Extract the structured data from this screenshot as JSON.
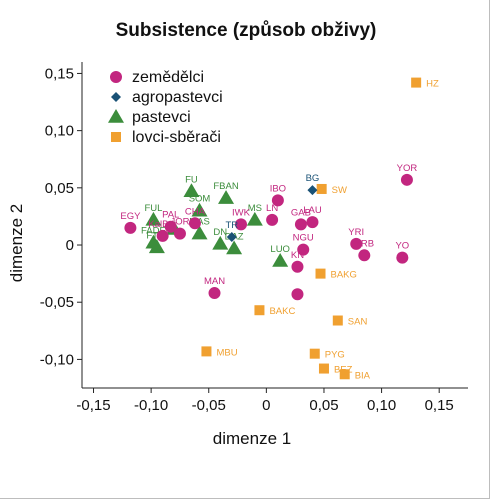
{
  "chart_data": {
    "type": "scatter",
    "title": "Subsistence (způsob obživy)",
    "xlabel": "dimenze 1",
    "ylabel": "dimenze 2",
    "xlim": [
      -0.16,
      0.175
    ],
    "ylim": [
      -0.125,
      0.16
    ],
    "xticks": [
      "-0,15",
      "-0,10",
      "-0,05",
      "0",
      "0,05",
      "0,10",
      "0,15"
    ],
    "xtick_values": [
      -0.15,
      -0.1,
      -0.05,
      0,
      0.05,
      0.1,
      0.15
    ],
    "yticks": [
      "0,15",
      "0,10",
      "0,05",
      "0",
      "-0,05",
      "-0,10"
    ],
    "ytick_values": [
      0.15,
      0.1,
      0.05,
      0,
      -0.05,
      -0.1
    ],
    "grid": false,
    "legend_position": "top-left",
    "series": [
      {
        "name": "zemědělci",
        "marker": "circle",
        "color": "#c2267f",
        "points": [
          {
            "label": "EGY",
            "x": -0.118,
            "y": 0.015
          },
          {
            "label": "KalBdr",
            "x": -0.09,
            "y": 0.008
          },
          {
            "label": "PAL",
            "x": -0.083,
            "y": 0.016
          },
          {
            "label": "JOR",
            "x": -0.075,
            "y": 0.01
          },
          {
            "label": "CHA",
            "x": -0.062,
            "y": 0.019
          },
          {
            "label": "IWK",
            "x": -0.022,
            "y": 0.018
          },
          {
            "label": "IBO",
            "x": 0.01,
            "y": 0.039
          },
          {
            "label": "LN",
            "x": 0.005,
            "y": 0.022
          },
          {
            "label": "GAB",
            "x": 0.03,
            "y": 0.018
          },
          {
            "label": "LAU",
            "x": 0.04,
            "y": 0.02
          },
          {
            "label": "YOR",
            "x": 0.122,
            "y": 0.057
          },
          {
            "label": "YRI",
            "x": 0.078,
            "y": 0.001
          },
          {
            "label": "YRB",
            "x": 0.085,
            "y": -0.009
          },
          {
            "label": "YO",
            "x": 0.118,
            "y": -0.011
          },
          {
            "label": "NGU",
            "x": 0.032,
            "y": -0.004
          },
          {
            "label": "KN",
            "x": 0.027,
            "y": -0.019
          },
          {
            "label": "MAN",
            "x": -0.045,
            "y": -0.042
          },
          {
            "label": "",
            "x": 0.027,
            "y": -0.043
          }
        ]
      },
      {
        "name": "agropastevci",
        "marker": "diamond",
        "color": "#1a5276",
        "points": [
          {
            "label": "BG",
            "x": 0.04,
            "y": 0.048
          },
          {
            "label": "TR",
            "x": -0.03,
            "y": 0.007
          }
        ]
      },
      {
        "name": "pastevci",
        "marker": "triangle",
        "color": "#3c8d3c",
        "points": [
          {
            "label": "FU",
            "x": -0.065,
            "y": 0.047
          },
          {
            "label": "FBAN",
            "x": -0.035,
            "y": 0.041
          },
          {
            "label": "SOM",
            "x": -0.058,
            "y": 0.03
          },
          {
            "label": "MS",
            "x": -0.01,
            "y": 0.022
          },
          {
            "label": "DN",
            "x": -0.04,
            "y": 0.001
          },
          {
            "label": "DAZ",
            "x": -0.028,
            "y": -0.003
          },
          {
            "label": "MAS",
            "x": -0.058,
            "y": 0.01
          },
          {
            "label": "FUL",
            "x": -0.098,
            "y": 0.022
          },
          {
            "label": "FADE",
            "x": -0.098,
            "y": 0.002
          },
          {
            "label": "FTIN",
            "x": -0.095,
            "y": -0.002
          },
          {
            "label": "LUO",
            "x": 0.012,
            "y": -0.014
          },
          {
            "label": "",
            "x": -0.08,
            "y": 0.014
          }
        ]
      },
      {
        "name": "lovci-sběrači",
        "marker": "square",
        "color": "#f0a030",
        "points": [
          {
            "label": "HZ",
            "x": 0.13,
            "y": 0.142
          },
          {
            "label": "SW",
            "x": 0.048,
            "y": 0.049
          },
          {
            "label": "BAKG",
            "x": 0.047,
            "y": -0.025
          },
          {
            "label": "BAKC",
            "x": -0.006,
            "y": -0.057
          },
          {
            "label": "SAN",
            "x": 0.062,
            "y": -0.066
          },
          {
            "label": "MBU",
            "x": -0.052,
            "y": -0.093
          },
          {
            "label": "PYG",
            "x": 0.042,
            "y": -0.095
          },
          {
            "label": "BEZ",
            "x": 0.05,
            "y": -0.108
          },
          {
            "label": "BIA",
            "x": 0.068,
            "y": -0.113
          }
        ]
      }
    ]
  }
}
